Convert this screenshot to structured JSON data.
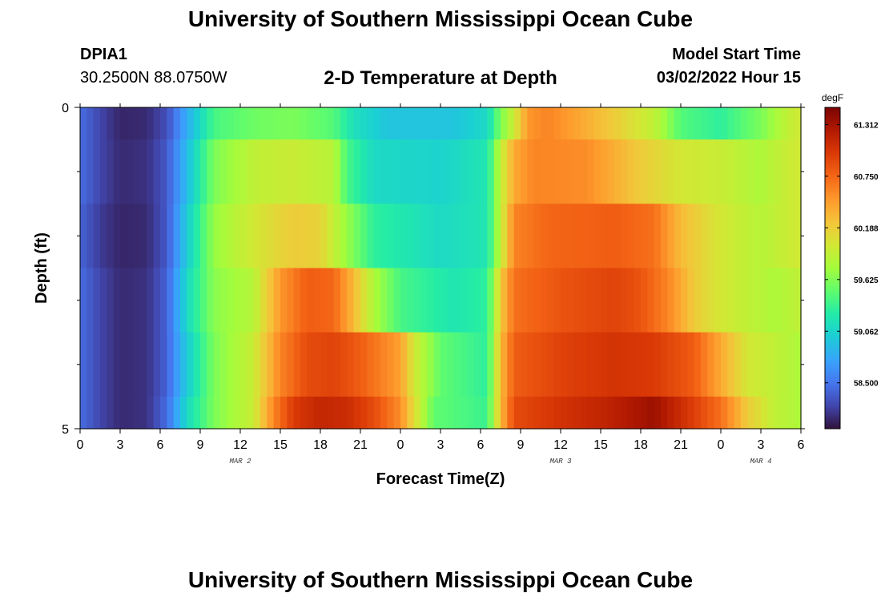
{
  "header": {
    "main_title": "University of Southern Mississippi Ocean Cube",
    "station_name": "DPIA1",
    "station_coords": "30.2500N  88.0750W",
    "chart_title": "2-D Temperature at Depth",
    "model_label": "Model Start Time",
    "model_time": "03/02/2022 Hour 15"
  },
  "footer": {
    "title": "University of Southern Mississippi Ocean Cube"
  },
  "chart_data": {
    "type": "heatmap",
    "title": "2-D Temperature at Depth",
    "xlabel": "Forecast Time(Z)",
    "ylabel": "Depth (ft)",
    "x_hours_range": [
      0,
      54
    ],
    "x_tick_labels": [
      "0",
      "3",
      "6",
      "9",
      "12",
      "15",
      "18",
      "21",
      "0",
      "3",
      "6",
      "9",
      "12",
      "15",
      "18",
      "21",
      "0",
      "3",
      "6"
    ],
    "date_labels": [
      {
        "text": "MAR 2",
        "hour": 12
      },
      {
        "text": "MAR 3",
        "hour": 36
      },
      {
        "text": "MAR 4",
        "hour": 51
      }
    ],
    "y_range": [
      0,
      5
    ],
    "y_tick_labels": [
      "0",
      "5"
    ],
    "y_minor_ticks": [
      1,
      2,
      3,
      4
    ],
    "depth_layers": [
      {
        "top": 0.0,
        "bottom": 0.5
      },
      {
        "top": 0.5,
        "bottom": 1.5
      },
      {
        "top": 1.5,
        "bottom": 2.5
      },
      {
        "top": 2.5,
        "bottom": 3.5
      },
      {
        "top": 3.5,
        "bottom": 4.5
      },
      {
        "top": 4.5,
        "bottom": 5.0
      }
    ],
    "temperature_knots": [
      [
        [
          0,
          58.45
        ],
        [
          1.5,
          58.25
        ],
        [
          3,
          58.1
        ],
        [
          5,
          58.12
        ],
        [
          6.5,
          58.3
        ],
        [
          8,
          58.8
        ],
        [
          10,
          59.4
        ],
        [
          13,
          59.55
        ],
        [
          16,
          59.6
        ],
        [
          19,
          59.45
        ],
        [
          20.5,
          59.15
        ],
        [
          23,
          58.95
        ],
        [
          28,
          58.95
        ],
        [
          30.5,
          59.1
        ],
        [
          31.5,
          59.6
        ],
        [
          32.5,
          59.95
        ],
        [
          33.5,
          60.5
        ],
        [
          35,
          60.6
        ],
        [
          37,
          60.45
        ],
        [
          40,
          60.2
        ],
        [
          43,
          59.9
        ],
        [
          45,
          59.45
        ],
        [
          48,
          59.3
        ],
        [
          51,
          59.6
        ],
        [
          53,
          59.9
        ],
        [
          54,
          60.0
        ]
      ],
      [
        [
          0,
          58.45
        ],
        [
          1.5,
          58.25
        ],
        [
          3,
          58.12
        ],
        [
          5,
          58.15
        ],
        [
          6.5,
          58.35
        ],
        [
          8,
          58.9
        ],
        [
          10,
          59.6
        ],
        [
          13,
          59.9
        ],
        [
          16,
          59.95
        ],
        [
          19,
          59.85
        ],
        [
          20,
          59.4
        ],
        [
          22,
          59.1
        ],
        [
          27,
          59.05
        ],
        [
          30.5,
          59.2
        ],
        [
          31.5,
          59.9
        ],
        [
          32.5,
          60.4
        ],
        [
          34,
          60.6
        ],
        [
          38,
          60.55
        ],
        [
          42,
          60.2
        ],
        [
          45,
          60.0
        ],
        [
          48,
          59.95
        ],
        [
          51,
          59.8
        ],
        [
          53,
          59.95
        ],
        [
          54,
          60.0
        ]
      ],
      [
        [
          0,
          58.4
        ],
        [
          1.5,
          58.2
        ],
        [
          3,
          58.1
        ],
        [
          5,
          58.12
        ],
        [
          6.5,
          58.35
        ],
        [
          8,
          59.0
        ],
        [
          10,
          59.7
        ],
        [
          13,
          60.0
        ],
        [
          16,
          60.2
        ],
        [
          18,
          60.15
        ],
        [
          19.5,
          59.8
        ],
        [
          22,
          59.3
        ],
        [
          27,
          59.1
        ],
        [
          30.5,
          59.2
        ],
        [
          31.5,
          59.9
        ],
        [
          32.5,
          60.6
        ],
        [
          35,
          60.75
        ],
        [
          40,
          60.8
        ],
        [
          43,
          60.7
        ],
        [
          45,
          60.3
        ],
        [
          48,
          60.0
        ],
        [
          51,
          59.85
        ],
        [
          53,
          59.95
        ],
        [
          54,
          60.0
        ]
      ],
      [
        [
          0,
          58.45
        ],
        [
          1.5,
          58.25
        ],
        [
          3,
          58.12
        ],
        [
          5,
          58.15
        ],
        [
          6.5,
          58.4
        ],
        [
          8,
          59.1
        ],
        [
          10,
          59.65
        ],
        [
          13,
          59.85
        ],
        [
          15,
          60.5
        ],
        [
          17,
          60.8
        ],
        [
          19,
          60.75
        ],
        [
          20.5,
          60.3
        ],
        [
          22,
          59.8
        ],
        [
          24,
          59.4
        ],
        [
          28,
          59.2
        ],
        [
          30.5,
          59.3
        ],
        [
          31.5,
          60.2
        ],
        [
          32.5,
          60.7
        ],
        [
          36,
          60.85
        ],
        [
          40,
          60.95
        ],
        [
          42,
          60.85
        ],
        [
          44,
          60.6
        ],
        [
          46,
          60.2
        ],
        [
          48,
          60.0
        ],
        [
          50,
          59.9
        ],
        [
          52,
          59.8
        ],
        [
          54,
          59.9
        ]
      ],
      [
        [
          0,
          58.45
        ],
        [
          1.5,
          58.25
        ],
        [
          3,
          58.12
        ],
        [
          5,
          58.15
        ],
        [
          6.5,
          58.4
        ],
        [
          8,
          59.0
        ],
        [
          10,
          59.6
        ],
        [
          13,
          59.95
        ],
        [
          15,
          60.6
        ],
        [
          17,
          60.9
        ],
        [
          19,
          60.95
        ],
        [
          21,
          60.8
        ],
        [
          24,
          60.45
        ],
        [
          25,
          60.0
        ],
        [
          27,
          59.5
        ],
        [
          30.5,
          59.3
        ],
        [
          31.5,
          60.3
        ],
        [
          32.5,
          60.8
        ],
        [
          36,
          60.95
        ],
        [
          40,
          61.05
        ],
        [
          43,
          61.0
        ],
        [
          46,
          60.8
        ],
        [
          48,
          60.4
        ],
        [
          50,
          60.0
        ],
        [
          52,
          59.9
        ],
        [
          54,
          59.8
        ]
      ],
      [
        [
          0,
          58.45
        ],
        [
          1.5,
          58.25
        ],
        [
          3,
          58.12
        ],
        [
          5,
          58.15
        ],
        [
          6.5,
          58.45
        ],
        [
          8,
          59.1
        ],
        [
          10,
          59.6
        ],
        [
          13,
          59.95
        ],
        [
          14.5,
          60.6
        ],
        [
          16,
          61.0
        ],
        [
          18,
          61.15
        ],
        [
          20,
          61.1
        ],
        [
          22,
          60.9
        ],
        [
          24,
          60.55
        ],
        [
          25,
          60.1
        ],
        [
          26.5,
          59.5
        ],
        [
          30.5,
          59.35
        ],
        [
          31.5,
          60.3
        ],
        [
          32.5,
          60.9
        ],
        [
          36,
          61.05
        ],
        [
          40,
          61.2
        ],
        [
          43,
          61.35
        ],
        [
          45,
          61.1
        ],
        [
          48,
          60.7
        ],
        [
          50,
          60.2
        ],
        [
          52,
          59.9
        ],
        [
          54,
          59.8
        ]
      ]
    ],
    "colorbar": {
      "unit": "degF",
      "min": 58.0,
      "max": 61.5,
      "tick_labels": [
        "61.312",
        "60.750",
        "60.188",
        "59.625",
        "59.062",
        "58.500"
      ],
      "tick_values": [
        61.312,
        60.75,
        60.188,
        59.625,
        59.062,
        58.5
      ],
      "colormap_stops": [
        [
          0.0,
          "#30123b"
        ],
        [
          0.07,
          "#4145ab"
        ],
        [
          0.14,
          "#4675ed"
        ],
        [
          0.21,
          "#39a2fc"
        ],
        [
          0.29,
          "#1bcfd4"
        ],
        [
          0.36,
          "#24eca6"
        ],
        [
          0.43,
          "#61fc6c"
        ],
        [
          0.5,
          "#a4fc3b"
        ],
        [
          0.57,
          "#d1e834"
        ],
        [
          0.64,
          "#f3c63a"
        ],
        [
          0.71,
          "#fe9b2d"
        ],
        [
          0.79,
          "#f36315"
        ],
        [
          0.86,
          "#d93806"
        ],
        [
          0.93,
          "#b11901"
        ],
        [
          1.0,
          "#7a0402"
        ]
      ]
    }
  }
}
